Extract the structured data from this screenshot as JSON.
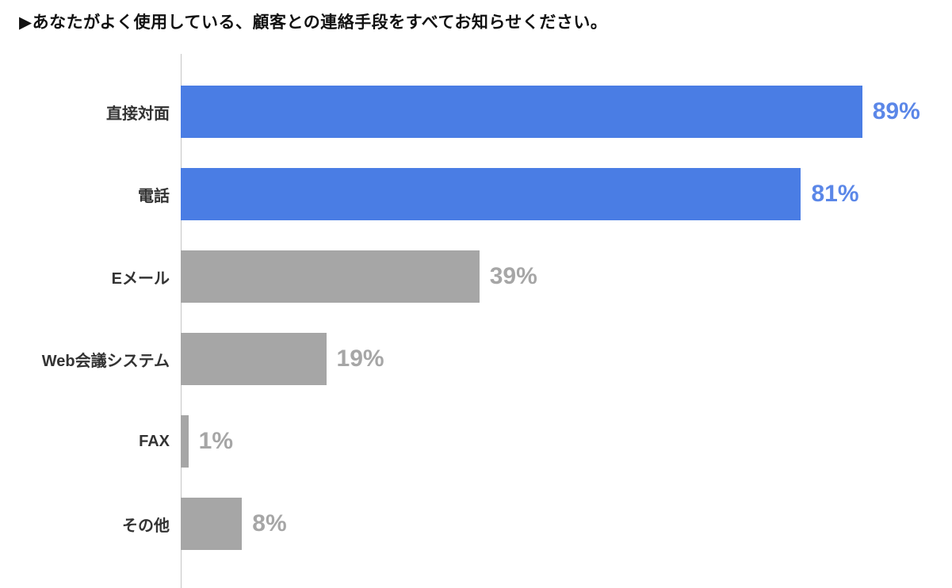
{
  "title": "▶あなたがよく使用している、顧客との連絡手段をすべてお知らせください。",
  "colors": {
    "accent_blue": "#4a7de4",
    "blue_value_label": "#5b87e8",
    "gray_bar": "#a6a6a6",
    "gray_value_label": "#a6a6a6",
    "category_label": "#333333",
    "axis_line": "#c6c6c6",
    "background": "#ffffff"
  },
  "chart_data": {
    "type": "bar",
    "orientation": "horizontal",
    "title": "あなたがよく使用している、顧客との連絡手段をすべてお知らせください。",
    "categories": [
      "直接対面",
      "電話",
      "Eメール",
      "Web会議システム",
      "FAX",
      "その他"
    ],
    "values": [
      89,
      81,
      39,
      19,
      1,
      8
    ],
    "value_labels": [
      "89%",
      "81%",
      "39%",
      "19%",
      "1%",
      "8%"
    ],
    "bar_colors": [
      "#4a7de4",
      "#4a7de4",
      "#a6a6a6",
      "#a6a6a6",
      "#a6a6a6",
      "#a6a6a6"
    ],
    "label_colors": [
      "#5b87e8",
      "#5b87e8",
      "#a6a6a6",
      "#a6a6a6",
      "#a6a6a6",
      "#a6a6a6"
    ],
    "xlabel": "",
    "ylabel": "",
    "xlim": [
      0,
      100
    ],
    "grid": false,
    "legend": false,
    "units": "%"
  }
}
